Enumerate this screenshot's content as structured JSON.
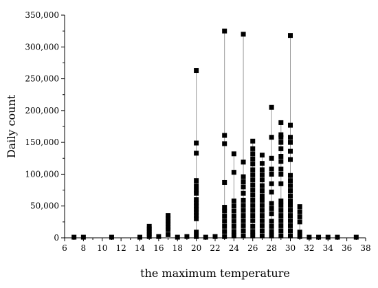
{
  "chart_data": {
    "type": "scatter",
    "xlabel": "the maximum temperature",
    "ylabel": "Daily count",
    "xlim": [
      6,
      38
    ],
    "ylim": [
      0,
      350000
    ],
    "x_ticks": [
      6,
      8,
      10,
      12,
      14,
      16,
      18,
      20,
      22,
      24,
      26,
      28,
      30,
      32,
      34,
      36,
      38
    ],
    "y_ticks": [
      0,
      50000,
      100000,
      150000,
      200000,
      250000,
      300000,
      350000
    ],
    "y_tick_labels": [
      "0",
      "50,000",
      "100,000",
      "150,000",
      "200,000",
      "250,000",
      "300,000",
      "350,000"
    ],
    "grid": false,
    "marker": "square",
    "marker_color": "#000000",
    "line_color": "#999999",
    "points": [
      {
        "x": 7,
        "y": 1000
      },
      {
        "x": 8,
        "y": 1000
      },
      {
        "x": 11,
        "y": 1000
      },
      {
        "x": 14,
        "y": 1000
      },
      {
        "x": 15,
        "y": 2000
      },
      {
        "x": 15,
        "y": 6000
      },
      {
        "x": 15,
        "y": 10000
      },
      {
        "x": 15,
        "y": 14000
      },
      {
        "x": 15,
        "y": 18000
      },
      {
        "x": 16,
        "y": 2000
      },
      {
        "x": 17,
        "y": 5000
      },
      {
        "x": 17,
        "y": 13000
      },
      {
        "x": 17,
        "y": 17000
      },
      {
        "x": 17,
        "y": 22000
      },
      {
        "x": 17,
        "y": 26000
      },
      {
        "x": 17,
        "y": 31000
      },
      {
        "x": 17,
        "y": 35000
      },
      {
        "x": 18,
        "y": 1000
      },
      {
        "x": 19,
        "y": 2000
      },
      {
        "x": 20,
        "y": 2000
      },
      {
        "x": 20,
        "y": 9000
      },
      {
        "x": 20,
        "y": 30000
      },
      {
        "x": 20,
        "y": 35000
      },
      {
        "x": 20,
        "y": 40000
      },
      {
        "x": 20,
        "y": 45000
      },
      {
        "x": 20,
        "y": 50000
      },
      {
        "x": 20,
        "y": 55000
      },
      {
        "x": 20,
        "y": 60000
      },
      {
        "x": 20,
        "y": 70000
      },
      {
        "x": 20,
        "y": 75000
      },
      {
        "x": 20,
        "y": 82000
      },
      {
        "x": 20,
        "y": 90000
      },
      {
        "x": 20,
        "y": 133000
      },
      {
        "x": 20,
        "y": 149000
      },
      {
        "x": 20,
        "y": 263000
      },
      {
        "x": 21,
        "y": 1000
      },
      {
        "x": 22,
        "y": 2000
      },
      {
        "x": 23,
        "y": 2000
      },
      {
        "x": 23,
        "y": 10000
      },
      {
        "x": 23,
        "y": 18000
      },
      {
        "x": 23,
        "y": 26000
      },
      {
        "x": 23,
        "y": 34000
      },
      {
        "x": 23,
        "y": 42000
      },
      {
        "x": 23,
        "y": 48000
      },
      {
        "x": 23,
        "y": 87000
      },
      {
        "x": 23,
        "y": 148000
      },
      {
        "x": 23,
        "y": 161000
      },
      {
        "x": 23,
        "y": 325000
      },
      {
        "x": 24,
        "y": 3000
      },
      {
        "x": 24,
        "y": 10000
      },
      {
        "x": 24,
        "y": 18000
      },
      {
        "x": 24,
        "y": 26000
      },
      {
        "x": 24,
        "y": 34000
      },
      {
        "x": 24,
        "y": 42000
      },
      {
        "x": 24,
        "y": 50000
      },
      {
        "x": 24,
        "y": 58000
      },
      {
        "x": 24,
        "y": 103000
      },
      {
        "x": 24,
        "y": 132000
      },
      {
        "x": 25,
        "y": 3000
      },
      {
        "x": 25,
        "y": 11000
      },
      {
        "x": 25,
        "y": 19000
      },
      {
        "x": 25,
        "y": 27000
      },
      {
        "x": 25,
        "y": 35000
      },
      {
        "x": 25,
        "y": 43000
      },
      {
        "x": 25,
        "y": 51000
      },
      {
        "x": 25,
        "y": 59000
      },
      {
        "x": 25,
        "y": 70000
      },
      {
        "x": 25,
        "y": 80000
      },
      {
        "x": 25,
        "y": 88000
      },
      {
        "x": 25,
        "y": 96000
      },
      {
        "x": 25,
        "y": 119000
      },
      {
        "x": 25,
        "y": 320000
      },
      {
        "x": 26,
        "y": 3000
      },
      {
        "x": 26,
        "y": 10000
      },
      {
        "x": 26,
        "y": 18000
      },
      {
        "x": 26,
        "y": 27000
      },
      {
        "x": 26,
        "y": 35000
      },
      {
        "x": 26,
        "y": 43000
      },
      {
        "x": 26,
        "y": 51000
      },
      {
        "x": 26,
        "y": 59000
      },
      {
        "x": 26,
        "y": 67000
      },
      {
        "x": 26,
        "y": 75000
      },
      {
        "x": 26,
        "y": 83000
      },
      {
        "x": 26,
        "y": 91000
      },
      {
        "x": 26,
        "y": 99000
      },
      {
        "x": 26,
        "y": 107000
      },
      {
        "x": 26,
        "y": 116000
      },
      {
        "x": 26,
        "y": 124000
      },
      {
        "x": 26,
        "y": 132000
      },
      {
        "x": 26,
        "y": 140000
      },
      {
        "x": 26,
        "y": 152000
      },
      {
        "x": 27,
        "y": 3000
      },
      {
        "x": 27,
        "y": 11000
      },
      {
        "x": 27,
        "y": 19000
      },
      {
        "x": 27,
        "y": 27000
      },
      {
        "x": 27,
        "y": 35000
      },
      {
        "x": 27,
        "y": 43000
      },
      {
        "x": 27,
        "y": 51000
      },
      {
        "x": 27,
        "y": 59000
      },
      {
        "x": 27,
        "y": 66000
      },
      {
        "x": 27,
        "y": 74000
      },
      {
        "x": 27,
        "y": 82000
      },
      {
        "x": 27,
        "y": 91000
      },
      {
        "x": 27,
        "y": 99000
      },
      {
        "x": 27,
        "y": 107000
      },
      {
        "x": 27,
        "y": 117000
      },
      {
        "x": 27,
        "y": 130000
      },
      {
        "x": 28,
        "y": 3000
      },
      {
        "x": 28,
        "y": 10000
      },
      {
        "x": 28,
        "y": 18000
      },
      {
        "x": 28,
        "y": 26000
      },
      {
        "x": 28,
        "y": 38000
      },
      {
        "x": 28,
        "y": 46000
      },
      {
        "x": 28,
        "y": 54000
      },
      {
        "x": 28,
        "y": 72000
      },
      {
        "x": 28,
        "y": 85000
      },
      {
        "x": 28,
        "y": 100000
      },
      {
        "x": 28,
        "y": 108000
      },
      {
        "x": 28,
        "y": 125000
      },
      {
        "x": 28,
        "y": 158000
      },
      {
        "x": 28,
        "y": 205000
      },
      {
        "x": 29,
        "y": 3000
      },
      {
        "x": 29,
        "y": 11000
      },
      {
        "x": 29,
        "y": 19000
      },
      {
        "x": 29,
        "y": 27000
      },
      {
        "x": 29,
        "y": 35000
      },
      {
        "x": 29,
        "y": 43000
      },
      {
        "x": 29,
        "y": 51000
      },
      {
        "x": 29,
        "y": 58000
      },
      {
        "x": 29,
        "y": 85000
      },
      {
        "x": 29,
        "y": 100000
      },
      {
        "x": 29,
        "y": 108000
      },
      {
        "x": 29,
        "y": 120000
      },
      {
        "x": 29,
        "y": 128000
      },
      {
        "x": 29,
        "y": 140000
      },
      {
        "x": 29,
        "y": 150000
      },
      {
        "x": 29,
        "y": 158000
      },
      {
        "x": 29,
        "y": 162000
      },
      {
        "x": 29,
        "y": 181000
      },
      {
        "x": 30,
        "y": 3000
      },
      {
        "x": 30,
        "y": 11000
      },
      {
        "x": 30,
        "y": 19000
      },
      {
        "x": 30,
        "y": 27000
      },
      {
        "x": 30,
        "y": 35000
      },
      {
        "x": 30,
        "y": 43000
      },
      {
        "x": 30,
        "y": 51000
      },
      {
        "x": 30,
        "y": 58000
      },
      {
        "x": 30,
        "y": 66000
      },
      {
        "x": 30,
        "y": 74000
      },
      {
        "x": 30,
        "y": 82000
      },
      {
        "x": 30,
        "y": 90000
      },
      {
        "x": 30,
        "y": 98000
      },
      {
        "x": 30,
        "y": 123000
      },
      {
        "x": 30,
        "y": 136000
      },
      {
        "x": 30,
        "y": 150000
      },
      {
        "x": 30,
        "y": 158000
      },
      {
        "x": 30,
        "y": 177000
      },
      {
        "x": 30,
        "y": 318000
      },
      {
        "x": 31,
        "y": 2000
      },
      {
        "x": 31,
        "y": 9000
      },
      {
        "x": 31,
        "y": 25000
      },
      {
        "x": 31,
        "y": 33000
      },
      {
        "x": 31,
        "y": 41000
      },
      {
        "x": 31,
        "y": 49000
      },
      {
        "x": 32,
        "y": 1000
      },
      {
        "x": 33,
        "y": 1000
      },
      {
        "x": 34,
        "y": 1000
      },
      {
        "x": 35,
        "y": 1000
      },
      {
        "x": 37,
        "y": 1000
      }
    ]
  }
}
